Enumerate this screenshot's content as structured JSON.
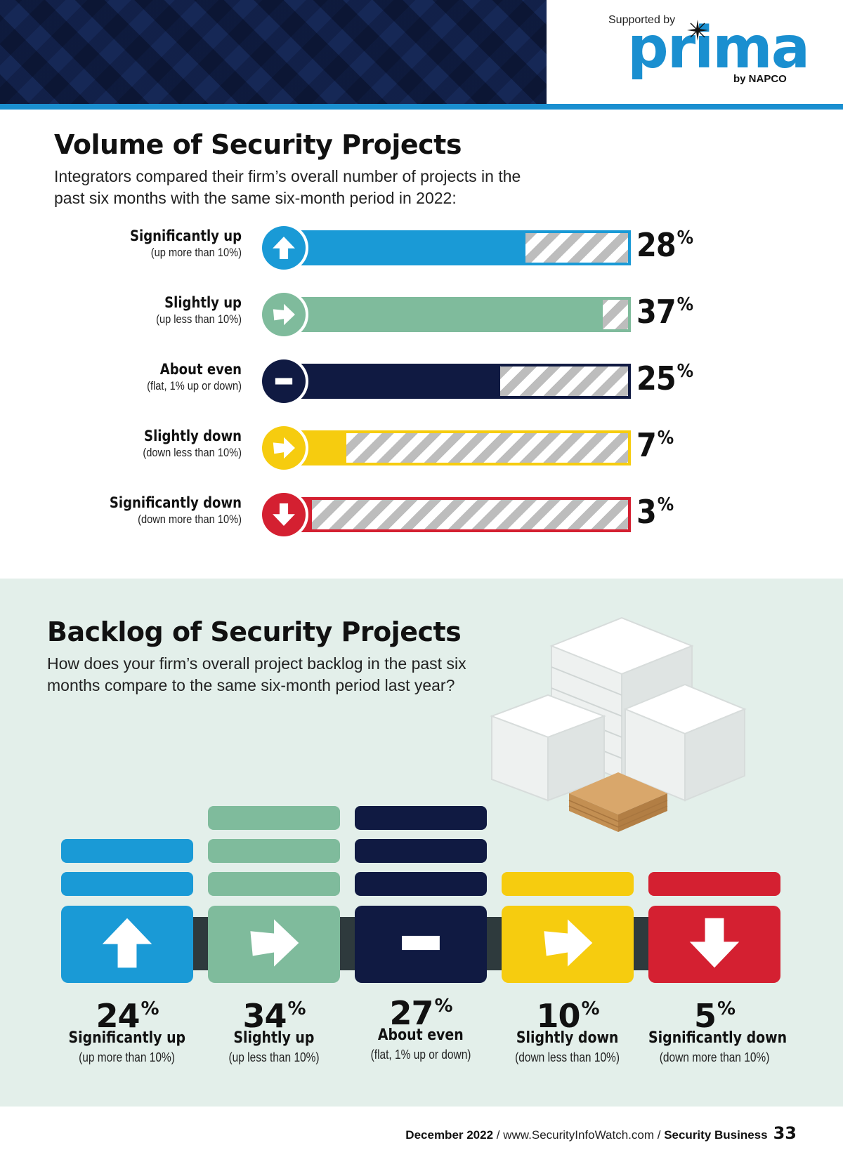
{
  "header": {
    "supported_by": "Supported by",
    "brand": "prima",
    "brand_by": "by NAPCO"
  },
  "colors": {
    "blue": "#1a9ad6",
    "green": "#7fbb9c",
    "navy": "#101a42",
    "yellow": "#f6cc0f",
    "red": "#d42031",
    "accent_rule": "#1a8fd0"
  },
  "chart_data": [
    {
      "type": "bar",
      "orientation": "horizontal",
      "title": "Volume of Security Projects",
      "subtitle": "Integrators compared their firm’s overall number of projects in the past six months with the same six-month period in 2022:",
      "categories": [
        "Significantly up",
        "Slightly up",
        "About even",
        "Slightly down",
        "Significantly down"
      ],
      "category_notes": [
        "(up more than 10%)",
        "(up less than 10%)",
        "(flat, 1% up or down)",
        "(down less than 10%)",
        "(down more than 10%)"
      ],
      "values": [
        28,
        37,
        25,
        7,
        3
      ],
      "value_labels": [
        "28",
        "37",
        "25",
        "7",
        "3"
      ],
      "value_suffix": "%",
      "icons": [
        "arrow-up-icon",
        "arrow-right-icon",
        "minus-icon",
        "arrow-right-icon",
        "arrow-down-icon"
      ],
      "colors": [
        "#1a9ad6",
        "#7fbb9c",
        "#101a42",
        "#f6cc0f",
        "#d42031"
      ],
      "xlim": [
        0,
        40
      ]
    },
    {
      "type": "bar",
      "orientation": "vertical",
      "title": "Backlog of Security Projects",
      "subtitle": "How does your firm’s overall project backlog in the past six months compare to the same six-month period last year?",
      "categories": [
        "Significantly up",
        "Slightly up",
        "About even",
        "Slightly down",
        "Significantly down"
      ],
      "category_notes": [
        "(up more than 10%)",
        "(up less than 10%)",
        "(flat, 1% up or down)",
        "(down less than 10%)",
        "(down more than 10%)"
      ],
      "values": [
        24,
        34,
        27,
        10,
        5
      ],
      "value_labels": [
        "24",
        "34",
        "27",
        "10",
        "5"
      ],
      "value_suffix": "%",
      "icons": [
        "arrow-up-icon",
        "arrow-right-icon",
        "minus-icon",
        "arrow-right-icon",
        "arrow-down-icon"
      ],
      "colors": [
        "#1a9ad6",
        "#7fbb9c",
        "#101a42",
        "#f6cc0f",
        "#d42031"
      ]
    }
  ],
  "footer": {
    "date": "December 2022",
    "sep1": " / ",
    "url": "www.SecurityInfoWatch.com",
    "sep2": " / ",
    "publication": "Security Business",
    "page": "33"
  }
}
